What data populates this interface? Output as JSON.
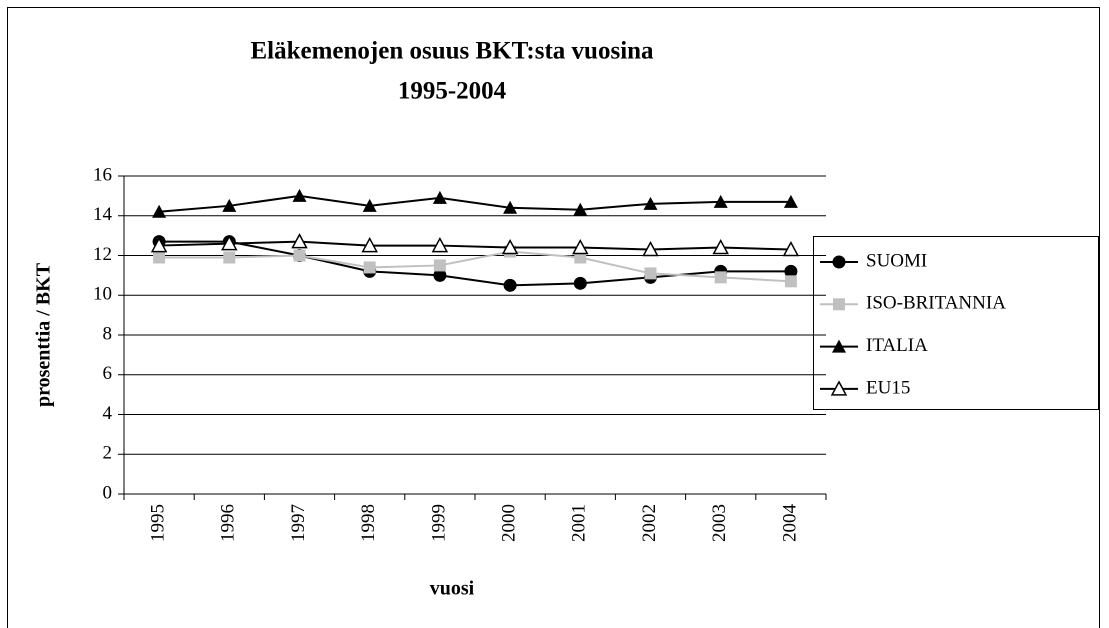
{
  "chart_data": {
    "type": "line",
    "title": [
      "Eläkemenojen osuus BKT:sta vuosina",
      "1995-2004"
    ],
    "x_label": "vuosi",
    "y_label": "prosenttia / BKT",
    "categories": [
      "1995",
      "1996",
      "1997",
      "1998",
      "1999",
      "2000",
      "2001",
      "2002",
      "2003",
      "2004"
    ],
    "series": [
      {
        "name": "SUOMI",
        "color": "#000000",
        "marker": "circle",
        "values": [
          12.7,
          12.7,
          12.0,
          11.2,
          11.0,
          10.5,
          10.6,
          10.9,
          11.2,
          11.2
        ]
      },
      {
        "name": "ISO-BRITANNIA",
        "color": "#c0c0c0",
        "marker": "square",
        "values": [
          11.9,
          11.9,
          12.0,
          11.4,
          11.5,
          12.2,
          11.9,
          11.1,
          10.9,
          10.7
        ]
      },
      {
        "name": "ITALIA",
        "color": "#000000",
        "marker": "triangle",
        "values": [
          14.2,
          14.5,
          15.0,
          14.5,
          14.9,
          14.4,
          14.3,
          14.6,
          14.7,
          14.7
        ]
      },
      {
        "name": "EU15",
        "color": "#000000",
        "marker": "triangle-open",
        "values": [
          12.5,
          12.6,
          12.7,
          12.5,
          12.5,
          12.4,
          12.4,
          12.3,
          12.4,
          12.3
        ]
      }
    ],
    "ylim": [
      0,
      16
    ],
    "yticks": [
      0,
      2,
      4,
      6,
      8,
      10,
      12,
      14,
      16
    ],
    "grid": true,
    "legend": "right"
  }
}
